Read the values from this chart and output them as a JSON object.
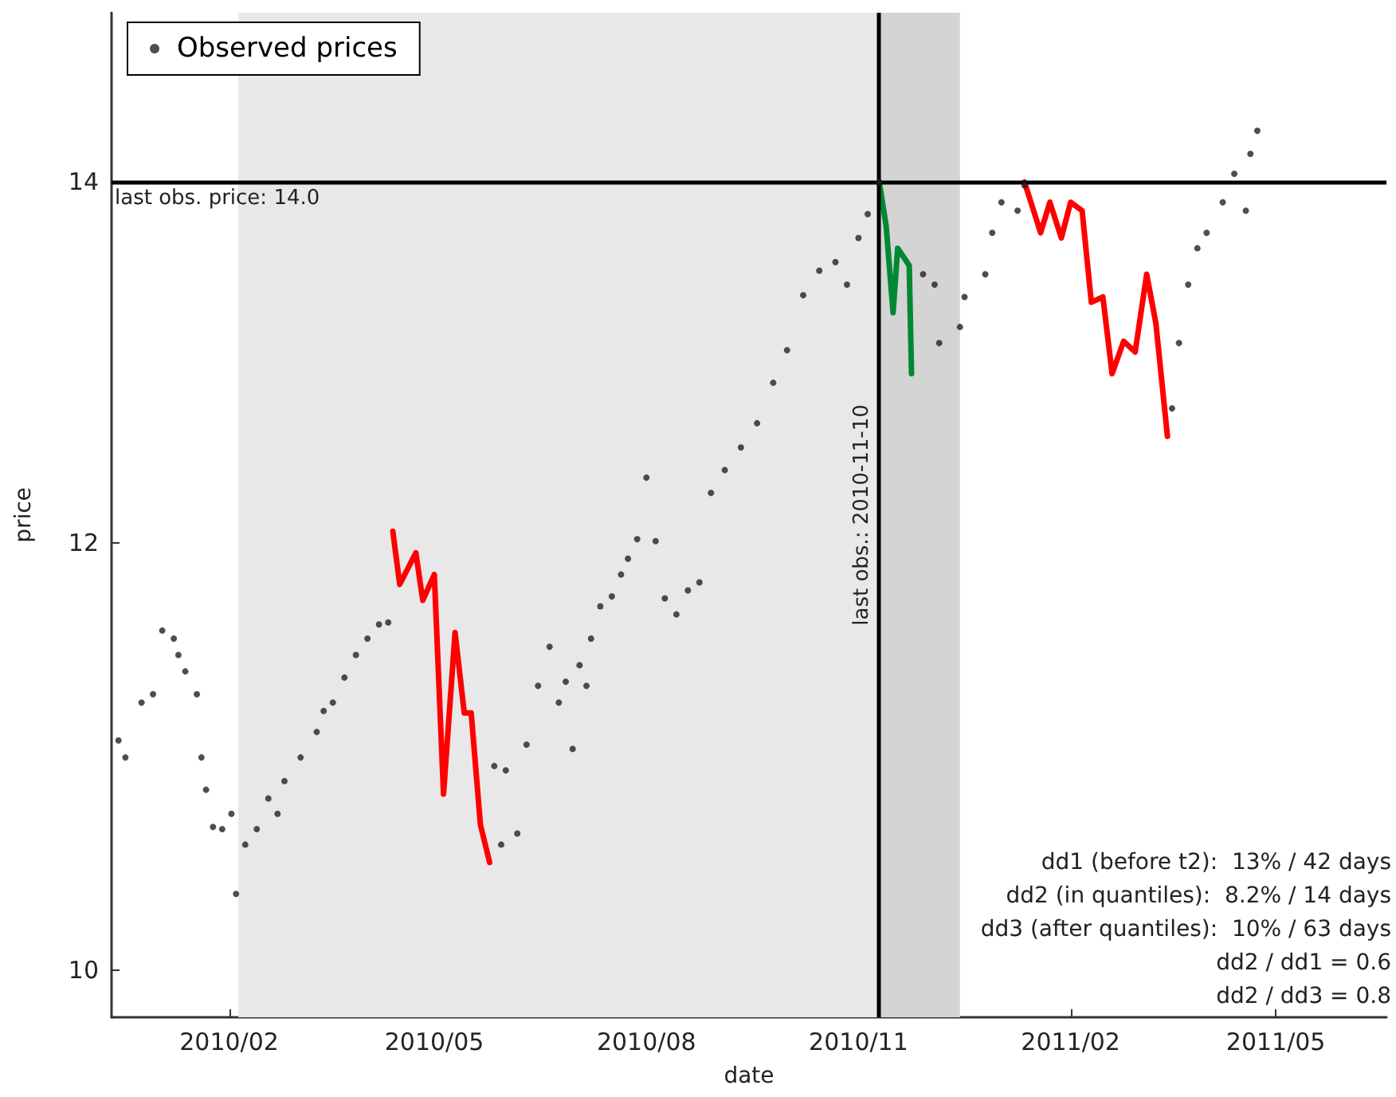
{
  "chart_data": {
    "type": "scatter",
    "xlabel": "date",
    "ylabel": "price",
    "xlim": [
      "2009-12-12",
      "2011-06-18"
    ],
    "xticks": [
      {
        "value": "2010-02-01",
        "label": "2010/02"
      },
      {
        "value": "2010-05-01",
        "label": "2010/05"
      },
      {
        "value": "2010-08-01",
        "label": "2010/08"
      },
      {
        "value": "2010-11-01",
        "label": "2010/11"
      },
      {
        "value": "2011-02-01",
        "label": "2011/02"
      },
      {
        "value": "2011-05-01",
        "label": "2011/05"
      }
    ],
    "ylim": [
      9.8,
      15.05
    ],
    "yticks": [
      10,
      12,
      14
    ],
    "log": "y",
    "grid": false,
    "legend": "top left",
    "series": [
      {
        "name": "Observed prices",
        "marker": "circle",
        "color": "#222222",
        "x": [
          "2009-12-15",
          "2009-12-18",
          "2009-12-25",
          "2009-12-30",
          "2010-01-03",
          "2010-01-08",
          "2010-01-10",
          "2010-01-13",
          "2010-01-18",
          "2010-01-20",
          "2010-01-22",
          "2010-01-25",
          "2010-01-29",
          "2010-02-02",
          "2010-02-04",
          "2010-02-08",
          "2010-02-13",
          "2010-02-18",
          "2010-02-22",
          "2010-02-25",
          "2010-03-04",
          "2010-03-11",
          "2010-03-14",
          "2010-03-18",
          "2010-03-23",
          "2010-03-28",
          "2010-04-02",
          "2010-04-07",
          "2010-04-11",
          "2010-05-27",
          "2010-05-30",
          "2010-06-01",
          "2010-06-06",
          "2010-06-10",
          "2010-06-15",
          "2010-06-20",
          "2010-06-24",
          "2010-06-27",
          "2010-06-30",
          "2010-07-03",
          "2010-07-06",
          "2010-07-08",
          "2010-07-12",
          "2010-07-17",
          "2010-07-21",
          "2010-07-24",
          "2010-07-28",
          "2010-08-01",
          "2010-08-05",
          "2010-08-09",
          "2010-08-14",
          "2010-08-19",
          "2010-08-24",
          "2010-08-29",
          "2010-09-04",
          "2010-09-11",
          "2010-09-18",
          "2010-09-25",
          "2010-10-01",
          "2010-10-08",
          "2010-10-15",
          "2010-10-22",
          "2010-10-27",
          "2010-11-01",
          "2010-11-05",
          "2010-11-10",
          "2010-11-29",
          "2010-12-04",
          "2010-12-06",
          "2010-12-15",
          "2010-12-17",
          "2010-12-26",
          "2010-12-29",
          "2011-01-02",
          "2011-01-09",
          "2011-01-12",
          "2011-03-17",
          "2011-03-20",
          "2011-03-24",
          "2011-03-28",
          "2011-04-01",
          "2011-04-08",
          "2011-04-13",
          "2011-04-18",
          "2011-04-20",
          "2011-04-23"
        ],
        "values": [
          11.03,
          10.95,
          11.21,
          11.25,
          11.56,
          11.52,
          11.44,
          11.36,
          11.25,
          10.95,
          10.8,
          10.63,
          10.62,
          10.69,
          10.33,
          10.55,
          10.62,
          10.76,
          10.69,
          10.84,
          10.95,
          11.07,
          11.17,
          11.21,
          11.33,
          11.44,
          11.52,
          11.59,
          11.6,
          10.91,
          10.55,
          10.89,
          10.6,
          11.01,
          11.29,
          11.48,
          11.21,
          11.31,
          10.99,
          11.39,
          11.29,
          11.52,
          11.68,
          11.73,
          11.84,
          11.92,
          12.02,
          12.34,
          12.01,
          11.72,
          11.64,
          11.76,
          11.8,
          12.26,
          12.38,
          12.5,
          12.63,
          12.85,
          13.03,
          13.34,
          13.48,
          13.53,
          13.4,
          13.67,
          13.81,
          14.0,
          13.46,
          13.4,
          13.07,
          13.16,
          13.33,
          13.46,
          13.7,
          13.88,
          13.83,
          13.98,
          12.71,
          13.07,
          13.4,
          13.61,
          13.7,
          13.88,
          14.05,
          13.83,
          14.17,
          14.31
        ]
      },
      {
        "type": "line",
        "color": "#ff0000",
        "x": [
          "2010-04-13",
          "2010-04-16",
          "2010-04-23",
          "2010-04-26",
          "2010-05-01",
          "2010-05-05",
          "2010-05-10",
          "2010-05-14",
          "2010-05-17",
          "2010-05-21",
          "2010-05-25"
        ],
        "values": [
          12.06,
          11.79,
          11.95,
          11.71,
          11.84,
          10.78,
          11.55,
          11.16,
          11.16,
          10.64,
          10.47
        ]
      },
      {
        "type": "line",
        "color": "#008833",
        "x": [
          "2010-11-10",
          "2010-11-13",
          "2010-11-16",
          "2010-11-18",
          "2010-11-23",
          "2010-11-24"
        ],
        "values": [
          14.0,
          13.74,
          13.24,
          13.61,
          13.51,
          12.9
        ]
      },
      {
        "type": "line",
        "color": "#ff0000",
        "x": [
          "2011-01-12",
          "2011-01-19",
          "2011-01-23",
          "2011-01-28",
          "2011-02-01",
          "2011-02-06",
          "2011-02-10",
          "2011-02-15",
          "2011-02-19",
          "2011-02-24",
          "2011-03-01",
          "2011-03-06",
          "2011-03-10",
          "2011-03-15"
        ],
        "values": [
          14.0,
          13.7,
          13.88,
          13.67,
          13.88,
          13.83,
          13.3,
          13.33,
          12.9,
          13.08,
          13.02,
          13.46,
          13.18,
          12.56
        ]
      }
    ],
    "ref_lines": [
      {
        "axis": "y",
        "value": 14.0,
        "label": "last obs. price: 14.0",
        "color": "#000000"
      },
      {
        "axis": "x",
        "value": "2010-11-10",
        "label": "last obs.: 2010-11-10",
        "color": "#000000"
      }
    ],
    "bands": [
      {
        "axis": "x",
        "from": "2010-02-05",
        "to": "2010-11-10",
        "color": "#e8e8e8"
      },
      {
        "axis": "x",
        "from": "2010-11-10",
        "to": "2010-12-15",
        "color": "#d4d4d4"
      }
    ],
    "annotations": [
      "dd1 (before t2):  13% / 42 days",
      "dd2 (in quantiles):  8.2% / 14 days",
      "dd3 (after quantiles):  10% / 63 days",
      "dd2 / dd1 = 0.6",
      "dd2 / dd3 = 0.8"
    ]
  }
}
